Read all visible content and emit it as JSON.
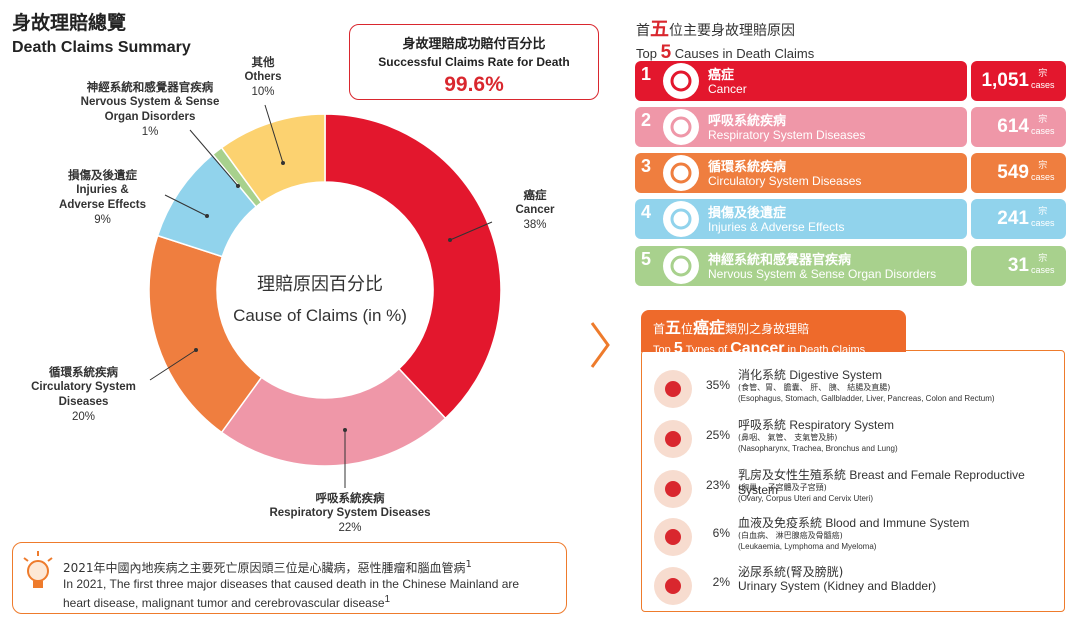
{
  "header": {
    "title_zh": "身故理賠總覽",
    "title_en": "Death Claims Summary"
  },
  "success_rate": {
    "label_zh": "身故理賠成功賠付百分比",
    "label_en": "Successful Claims Rate for Death",
    "value": "99.6%"
  },
  "chart_data": {
    "type": "pie",
    "title": "Cause of Claims (in %)",
    "title_zh": "理賠原因百分比",
    "categories": [
      "Cancer",
      "Respiratory System Diseases",
      "Circulatory System Diseases",
      "Injuries & Adverse Effects",
      "Nervous System & Sense Organ Disorders",
      "Others"
    ],
    "values": [
      38,
      22,
      20,
      9,
      1,
      10
    ],
    "colors": [
      "#e3172d",
      "#ef97a8",
      "#ef7e3f",
      "#91d3ec",
      "#a8d18d",
      "#fcd270"
    ],
    "labels": [
      {
        "zh": "癌症",
        "en": "Cancer",
        "pct": "38%"
      },
      {
        "zh": "呼吸系統疾病",
        "en": "Respiratory System Diseases",
        "pct": "22%"
      },
      {
        "zh": "循環系統疾病",
        "en1": "Circulatory System",
        "en2": "Diseases",
        "pct": "20%"
      },
      {
        "zh": "損傷及後遺症",
        "en1": "Injuries &",
        "en2": "Adverse Effects",
        "pct": "9%"
      },
      {
        "zh": "神經系統和感覺器官疾病",
        "en1": "Nervous System & Sense",
        "en2": "Organ Disorders",
        "pct": "1%"
      },
      {
        "zh": "其他",
        "en": "Others",
        "pct": "10%"
      }
    ]
  },
  "note": {
    "line_zh": "2021年中國內地疾病之主要死亡原因頭三位是心臟病，惡性腫瘤和腦血管病",
    "sup": "1",
    "line_en1": "In 2021, The first three major diseases that caused death in the Chinese Mainland are",
    "line_en2": "heart disease, malignant tumor and cerebrovascular disease"
  },
  "top5": {
    "title_zh_pre": "首",
    "title_zh_big": "五",
    "title_zh_post": "位主要身故理賠原因",
    "title_en_pre": "Top",
    "title_en_big": "5",
    "title_en_post": "Causes in Death Claims",
    "unit_zh": "宗",
    "unit_en": "cases",
    "items": [
      {
        "num": "1",
        "zh": "癌症",
        "en": "Cancer",
        "count": "1,051",
        "color": "#e3172d",
        "icon": "cancer-cell-icon"
      },
      {
        "num": "2",
        "zh": "呼吸系統疾病",
        "en": "Respiratory System Diseases",
        "count": "614",
        "color": "#ef97a8",
        "icon": "lungs-icon"
      },
      {
        "num": "3",
        "zh": "循環系統疾病",
        "en": "Circulatory System Diseases",
        "count": "549",
        "color": "#ef7e3f",
        "icon": "circulation-icon"
      },
      {
        "num": "4",
        "zh": "損傷及後遺症",
        "en": "Injuries & Adverse Effects",
        "count": "241",
        "color": "#91d3ec",
        "icon": "injury-icon"
      },
      {
        "num": "5",
        "zh": "神經系統和感覺器官疾病",
        "en": "Nervous System & Sense Organ Disorders",
        "count": "31",
        "color": "#a8d18d",
        "icon": "neuron-icon"
      }
    ]
  },
  "cancer": {
    "tab_zh_pre": "首",
    "tab_zh_big": "五",
    "tab_zh_mid": "位",
    "tab_zh_hl": "癌症",
    "tab_zh_post": "類別之身故理賠",
    "tab_en_pre": "Top",
    "tab_en_big": "5",
    "tab_en_mid": "Types of",
    "tab_en_hl": "Cancer",
    "tab_en_post": "in Death Claims",
    "items": [
      {
        "pct": "35%",
        "zh": "消化系統",
        "en": "Digestive System",
        "detail_zh": "(食管、胃、 膽囊、 肝、 胰、 結腸及直腸)",
        "detail_en": "(Esophagus, Stomach, Gallbladder, Liver, Pancreas, Colon and Rectum)",
        "icon": "stomach-icon"
      },
      {
        "pct": "25%",
        "zh": "呼吸系統",
        "en": "Respiratory System",
        "detail_zh": "(鼻咽、 氣管、 支氣管及肺)",
        "detail_en": "(Nasopharynx, Trachea, Bronchus and Lung)",
        "icon": "lungs-icon"
      },
      {
        "pct": "23%",
        "zh": "乳房及女性生殖系統",
        "en": "Breast and Female Reproductive System",
        "detail_zh": "(卵巢、 子宮體及子宮頸)",
        "detail_en": "(Ovary, Corpus Uteri and Cervix Uteri)",
        "icon": "uterus-icon"
      },
      {
        "pct": "6%",
        "zh": "血液及免疫系統",
        "en": "Blood and Immune System",
        "detail_zh": "(白血病、 淋巴腺癌及骨髓癌)",
        "detail_en": "(Leukaemia, Lymphoma and Myeloma)",
        "icon": "blood-drop-icon"
      },
      {
        "pct": "2%",
        "zh": "泌尿系統(腎及膀胱)",
        "en": "Urinary System (Kidney and Bladder)",
        "detail_zh": "",
        "detail_en": "",
        "icon": "kidney-icon"
      }
    ]
  }
}
